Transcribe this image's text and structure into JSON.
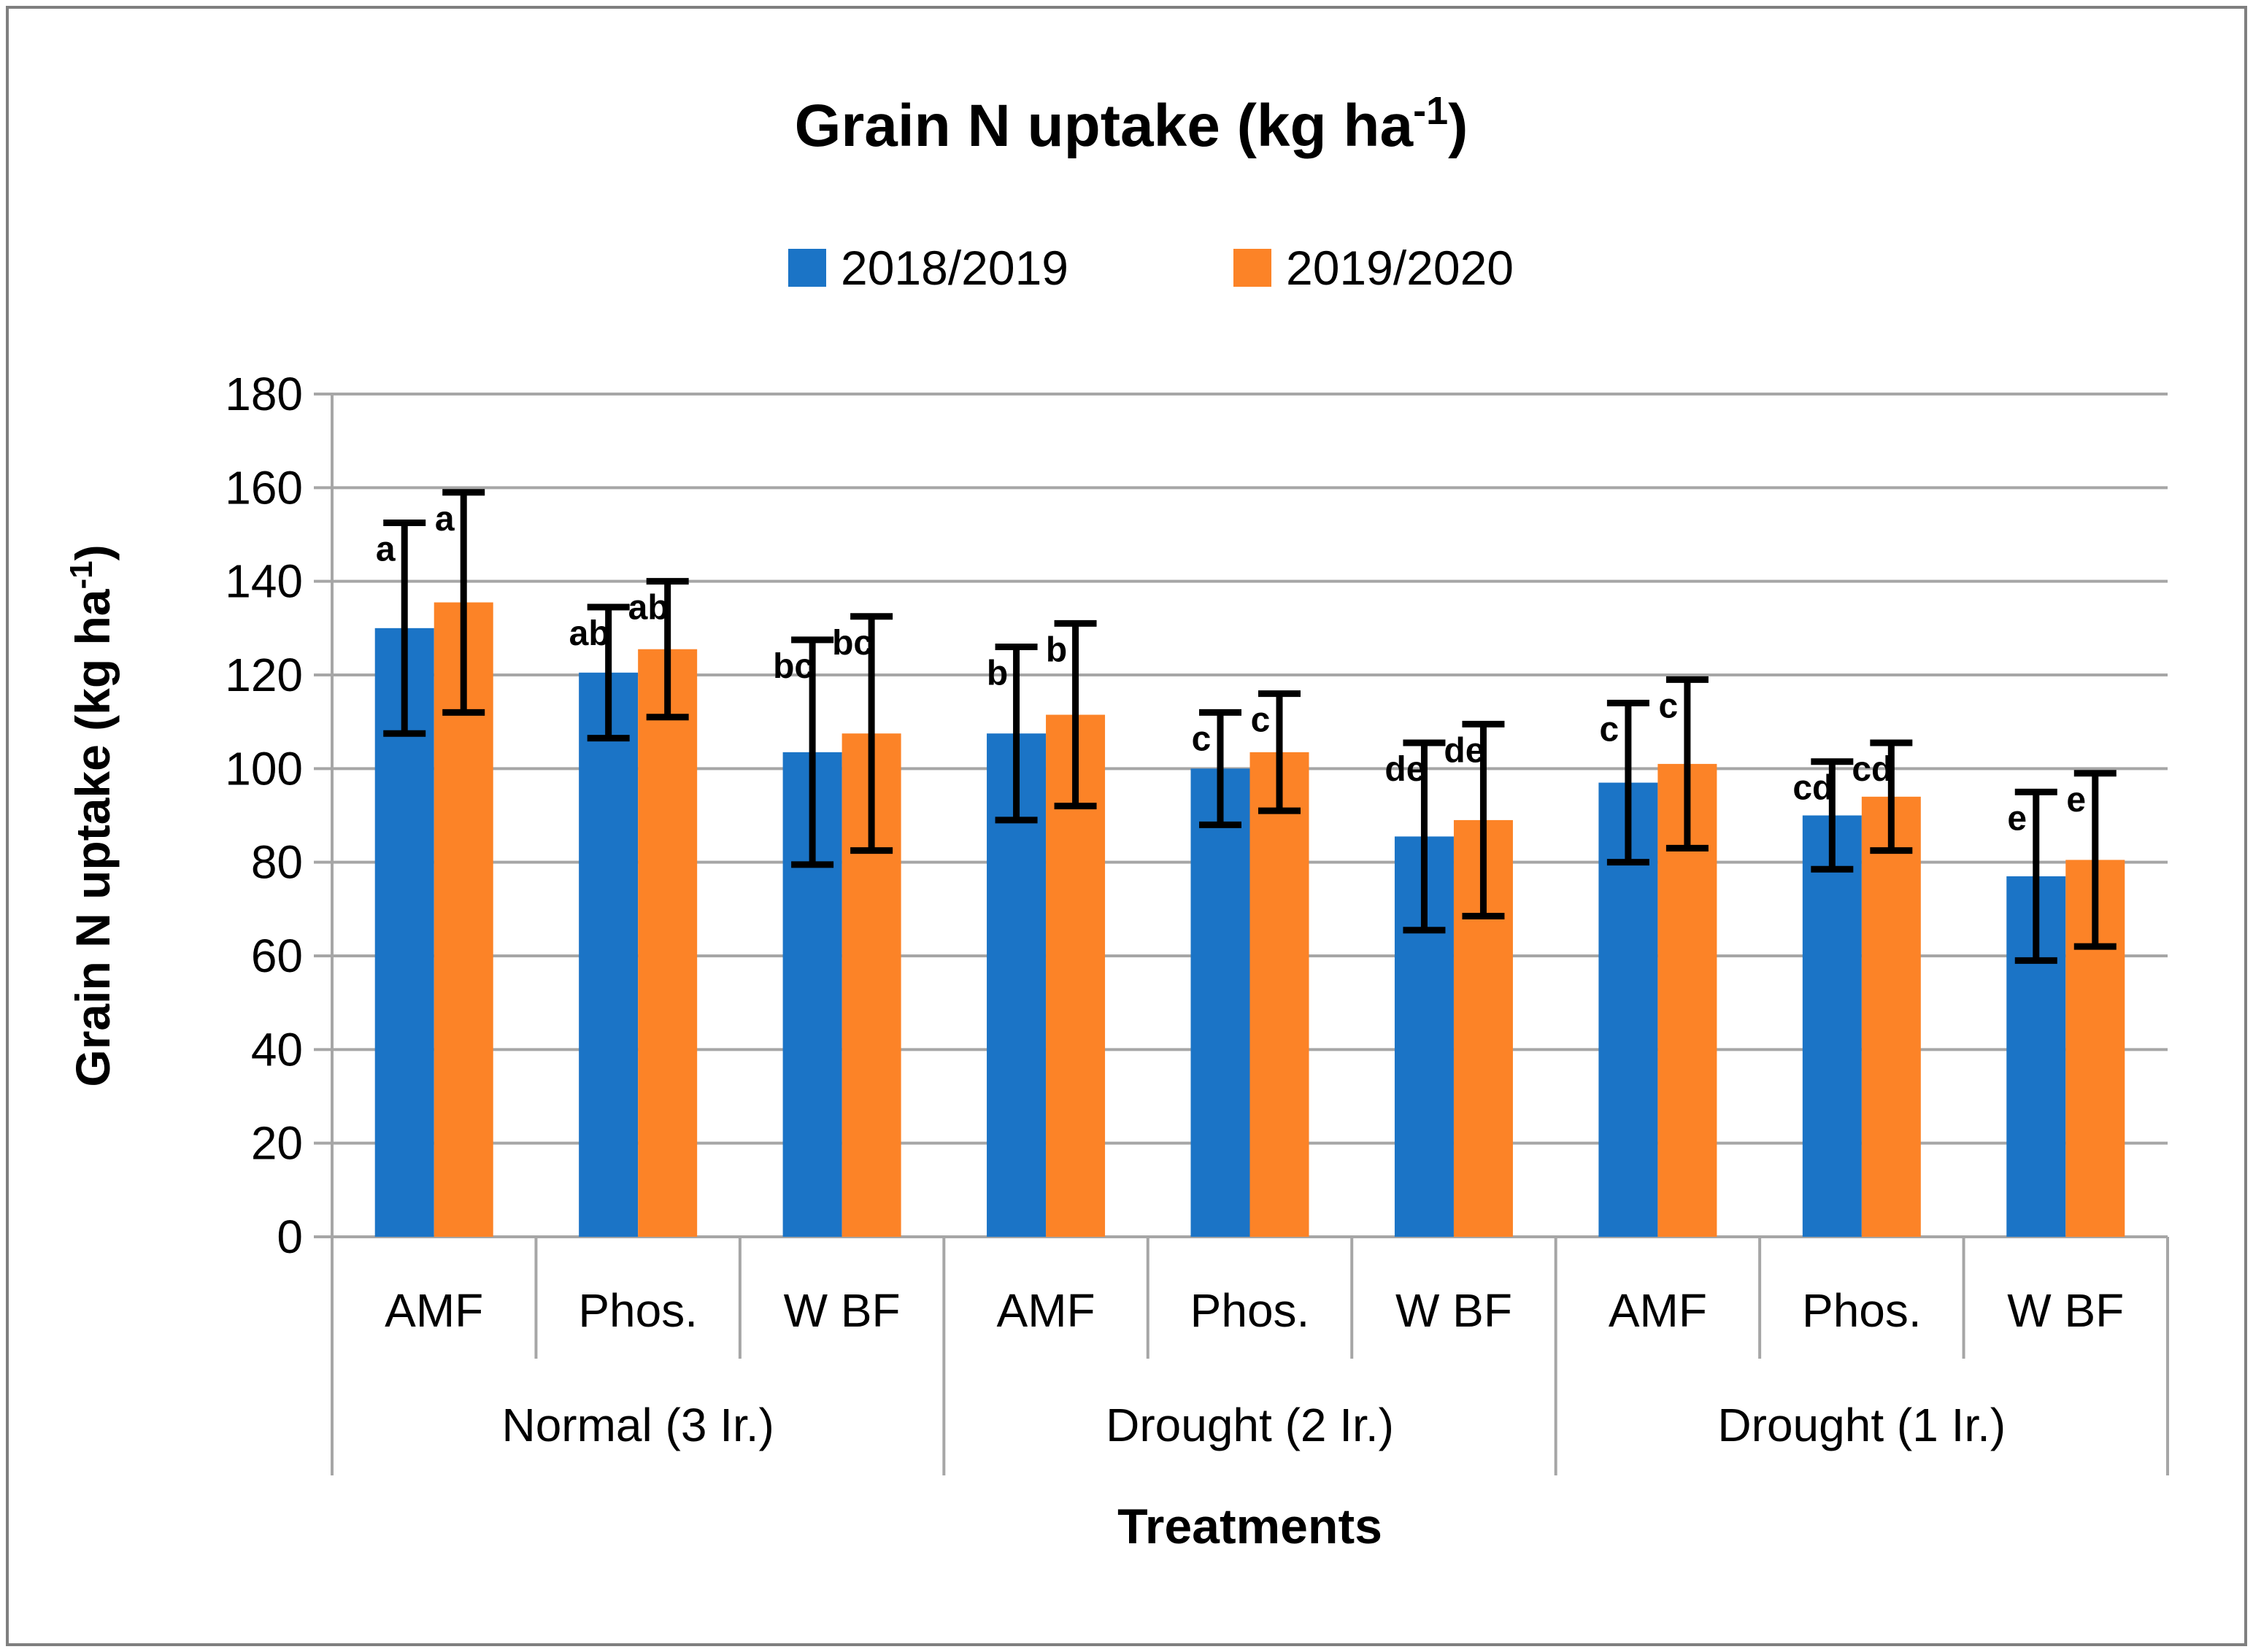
{
  "chart_data": {
    "type": "bar",
    "title": {
      "pre": "Grain N uptake (kg ha",
      "sup": "-1",
      "post": ")"
    },
    "ylabel": {
      "pre": "Grain N uptake (kg ha",
      "sup": "-1",
      "post": ")"
    },
    "xlabel": "Treatments",
    "ylim": [
      0,
      180
    ],
    "ytick_step": 20,
    "grid": true,
    "legend_position": "top",
    "groups": [
      {
        "label": "Normal (3 Ir.)"
      },
      {
        "label": "Drought (2 Ir.)"
      },
      {
        "label": "Drought (1 Ir.)"
      }
    ],
    "categories": [
      "AMF",
      "Phos.",
      "W BF",
      "AMF",
      "Phos.",
      "W BF",
      "AMF",
      "Phos.",
      "W BF"
    ],
    "series": [
      {
        "name": "2018/2019",
        "color": "#1B74C6",
        "values": [
          130,
          120.5,
          103.5,
          107.5,
          100,
          85.5,
          97,
          90,
          77
        ],
        "err_minus": [
          22.5,
          14,
          24,
          18.5,
          12,
          20,
          17,
          11.5,
          18
        ],
        "err_plus": [
          22.5,
          14,
          24,
          18.5,
          12,
          20,
          17,
          11.5,
          18
        ],
        "letters": [
          "a",
          "ab",
          "bc",
          "b",
          "c",
          "de",
          "c",
          "cd",
          "e"
        ]
      },
      {
        "name": "2019/2020",
        "color": "#FC8327",
        "values": [
          135.5,
          125.5,
          107.5,
          111.5,
          103.5,
          89,
          101,
          94,
          80.5
        ],
        "err_minus": [
          23.5,
          14.5,
          25,
          19.5,
          12.5,
          20.5,
          18,
          11.5,
          18.5
        ],
        "err_plus": [
          23.5,
          14.5,
          25,
          19.5,
          12.5,
          20.5,
          18,
          11.5,
          18.5
        ],
        "letters": [
          "a",
          "ab",
          "bc",
          "b",
          "c",
          "de",
          "c",
          "cd",
          "e"
        ]
      }
    ]
  },
  "styles": {
    "gridline_color": "#A6A6A6",
    "axis_color": "#A6A6A6",
    "border_color": "#7F7F7F",
    "text_color": "#000000",
    "error_bar_color": "#000000"
  }
}
